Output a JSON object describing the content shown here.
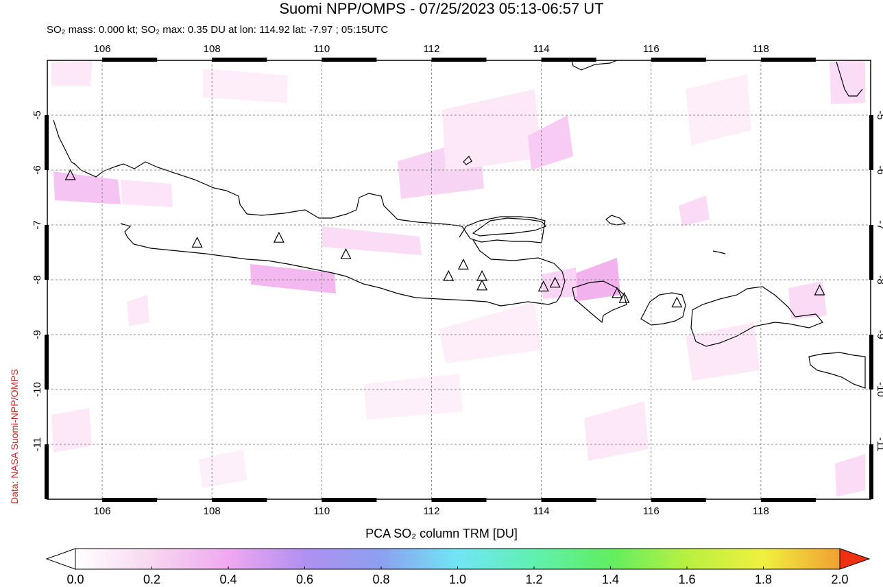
{
  "header": {
    "title": "Suomi NPP/OMPS - 07/25/2023 05:13-06:57 UT",
    "subtitle": "SO₂ mass: 0.000 kt; SO₂ max: 0.35 DU at lon: 114.92 lat: -7.97 ; 05:15UTC"
  },
  "credit": "Data: NASA Suomi-NPP/OMPS",
  "map": {
    "lon_range": [
      105.0,
      120.0
    ],
    "lat_range": [
      -12.0,
      -4.0
    ],
    "lon_ticks": [
      106,
      108,
      110,
      112,
      114,
      116,
      118
    ],
    "lon_tick_labels": [
      "106",
      "108",
      "110",
      "112",
      "114",
      "116",
      "118"
    ],
    "lat_ticks": [
      -5,
      -6,
      -7,
      -8,
      -9,
      -10,
      -11
    ],
    "lat_tick_labels": [
      "-5",
      "-6",
      "-7",
      "-8",
      "-9",
      "-10",
      "-11"
    ],
    "grid": true,
    "volcanoes": [
      {
        "lon": 105.42,
        "lat": -6.1
      },
      {
        "lon": 107.73,
        "lat": -7.33
      },
      {
        "lon": 109.22,
        "lat": -7.24
      },
      {
        "lon": 110.44,
        "lat": -7.54
      },
      {
        "lon": 112.31,
        "lat": -7.94
      },
      {
        "lon": 112.58,
        "lat": -7.73
      },
      {
        "lon": 112.92,
        "lat": -7.94
      },
      {
        "lon": 112.92,
        "lat": -8.11
      },
      {
        "lon": 114.04,
        "lat": -8.13
      },
      {
        "lon": 114.25,
        "lat": -8.06
      },
      {
        "lon": 115.38,
        "lat": -8.25
      },
      {
        "lon": 115.51,
        "lat": -8.34
      },
      {
        "lon": 116.47,
        "lat": -8.42
      },
      {
        "lon": 119.07,
        "lat": -8.2
      }
    ]
  },
  "colorbar": {
    "title": "PCA SO₂ column TRM [DU]",
    "tick_labels": [
      "0.0",
      "0.2",
      "0.4",
      "0.6",
      "0.8",
      "1.0",
      "1.2",
      "1.4",
      "1.6",
      "1.8",
      "2.0"
    ],
    "colors": [
      "#ffffff",
      "#f7d7f0",
      "#f0a8f0",
      "#b090f0",
      "#8ca0f0",
      "#70e6f5",
      "#60f0b0",
      "#60ee60",
      "#b8f040",
      "#f0f040",
      "#f0a030",
      "#f03010"
    ]
  },
  "so2_colors": {
    "faint": "#fde8f8",
    "light": "#f9d0f4",
    "medium": "#f4b6f0"
  }
}
